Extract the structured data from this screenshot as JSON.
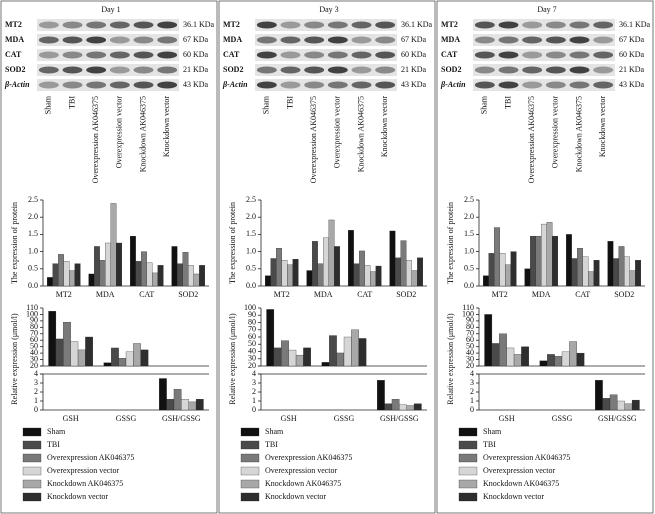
{
  "panels": [
    {
      "title": "Day 1"
    },
    {
      "title": "Day 3"
    },
    {
      "title": "Day 7"
    }
  ],
  "blot": {
    "rows": [
      "MT2",
      "MDA",
      "CAT",
      "SOD2",
      "β-Actin"
    ],
    "sizes": [
      "36.1 KDa",
      "67 KDa",
      "60 KDa",
      "21 KDa",
      "43 KDa"
    ],
    "lanes": [
      "Sham",
      "TBI",
      "Overexpression AK046375",
      "Overexpression vector",
      "Knockdown AK046375",
      "Knockdown vector"
    ]
  },
  "chart_data": [
    {
      "type": "bar",
      "y_label": "The expression of protein",
      "categories": [
        "MT2",
        "MDA",
        "CAT",
        "SOD2"
      ],
      "ylim": [
        0,
        2.5
      ],
      "yticks": [
        {
          "value": 0,
          "label": "0.0"
        },
        {
          "value": 0.5,
          "label": "0.5"
        },
        {
          "value": 1,
          "label": "1.0"
        },
        {
          "value": 1.5,
          "label": "1.5"
        },
        {
          "value": 2,
          "label": "2.0"
        },
        {
          "value": 2.5,
          "label": "2.5"
        }
      ],
      "series": [
        {
          "name": "Sham",
          "color": "#111111",
          "values": [
            0.25,
            0.35,
            1.45,
            1.15
          ]
        },
        {
          "name": "TBI",
          "color": "#4a4a4a",
          "values": [
            0.65,
            1.15,
            0.72,
            0.65
          ]
        },
        {
          "name": "Overexpression AK046375",
          "color": "#7a7a7a",
          "values": [
            0.92,
            0.75,
            1.0,
            0.98
          ]
        },
        {
          "name": "Overexpression vector",
          "color": "#d6d6d6",
          "values": [
            0.72,
            1.25,
            0.68,
            0.6
          ]
        },
        {
          "name": "Knockdown AK046375",
          "color": "#a8a8a8",
          "values": [
            0.45,
            2.4,
            0.38,
            0.35
          ]
        },
        {
          "name": "Knockdown vector",
          "color": "#2e2e2e",
          "values": [
            0.65,
            1.25,
            0.6,
            0.6
          ]
        }
      ]
    },
    {
      "type": "broken-bar",
      "y_label": "Relative expression (μmol/l)",
      "categories": [
        "GSH",
        "GSSG",
        "GSH/GSSG"
      ],
      "ylim": [
        20,
        110
      ],
      "yticks": [
        20,
        30,
        40,
        50,
        60,
        70,
        80,
        90,
        100,
        110
      ],
      "y2lim": [
        0,
        4
      ],
      "y2ticks": [
        0,
        1,
        2,
        3,
        4
      ],
      "series": [
        {
          "name": "Sham",
          "color": "#111111",
          "values": [
            105,
            25,
            3.5
          ]
        },
        {
          "name": "TBI",
          "color": "#4a4a4a",
          "values": [
            62,
            48,
            1.2
          ]
        },
        {
          "name": "Overexpression AK046375",
          "color": "#7a7a7a",
          "values": [
            88,
            32,
            2.3
          ]
        },
        {
          "name": "Overexpression vector",
          "color": "#d6d6d6",
          "values": [
            58,
            42,
            1.2
          ]
        },
        {
          "name": "Knockdown AK046375",
          "color": "#a8a8a8",
          "values": [
            45,
            55,
            0.9
          ]
        },
        {
          "name": "Knockdown vector",
          "color": "#2e2e2e",
          "values": [
            65,
            45,
            1.2
          ]
        }
      ]
    },
    {
      "type": "bar",
      "y_label": "The expression of protein",
      "categories": [
        "MT2",
        "MDA",
        "CAT",
        "SOD2"
      ],
      "ylim": [
        0,
        2.5
      ],
      "yticks": [
        {
          "value": 0,
          "label": "0.0"
        },
        {
          "value": 0.5,
          "label": "0.5"
        },
        {
          "value": 1,
          "label": "1.0"
        },
        {
          "value": 1.5,
          "label": "1.5"
        },
        {
          "value": 2,
          "label": "2.0"
        },
        {
          "value": 2.5,
          "label": "2.5"
        }
      ],
      "series": [
        {
          "name": "Sham",
          "color": "#111111",
          "values": [
            0.3,
            0.45,
            1.62,
            1.6
          ]
        },
        {
          "name": "TBI",
          "color": "#4a4a4a",
          "values": [
            0.8,
            1.3,
            0.65,
            0.82
          ]
        },
        {
          "name": "Overexpression AK046375",
          "color": "#7a7a7a",
          "values": [
            1.1,
            0.65,
            1.02,
            1.32
          ]
        },
        {
          "name": "Overexpression vector",
          "color": "#d6d6d6",
          "values": [
            0.75,
            1.4,
            0.6,
            0.75
          ]
        },
        {
          "name": "Knockdown AK046375",
          "color": "#a8a8a8",
          "values": [
            0.62,
            1.92,
            0.42,
            0.45
          ]
        },
        {
          "name": "Knockdown vector",
          "color": "#2e2e2e",
          "values": [
            0.78,
            1.15,
            0.58,
            0.82
          ]
        }
      ]
    },
    {
      "type": "broken-bar",
      "y_label": "Relative expression (μmol/l)",
      "categories": [
        "GSH",
        "GSSG",
        "GSH/GSSG"
      ],
      "ylim": [
        20,
        100
      ],
      "yticks": [
        20,
        30,
        40,
        50,
        60,
        70,
        80,
        90,
        100
      ],
      "y2lim": [
        0,
        4
      ],
      "y2ticks": [
        0,
        1,
        2,
        3,
        4
      ],
      "series": [
        {
          "name": "Sham",
          "color": "#111111",
          "values": [
            98,
            25,
            3.3
          ]
        },
        {
          "name": "TBI",
          "color": "#4a4a4a",
          "values": [
            45,
            62,
            0.7
          ]
        },
        {
          "name": "Overexpression AK046375",
          "color": "#7a7a7a",
          "values": [
            55,
            38,
            1.2
          ]
        },
        {
          "name": "Overexpression vector",
          "color": "#d6d6d6",
          "values": [
            42,
            60,
            0.6
          ]
        },
        {
          "name": "Knockdown AK046375",
          "color": "#a8a8a8",
          "values": [
            35,
            70,
            0.5
          ]
        },
        {
          "name": "Knockdown vector",
          "color": "#2e2e2e",
          "values": [
            45,
            58,
            0.7
          ]
        }
      ]
    },
    {
      "type": "bar",
      "y_label": "The expression of protein",
      "categories": [
        "MT2",
        "MDA",
        "CAT",
        "SOD2"
      ],
      "ylim": [
        0,
        2.5
      ],
      "yticks": [
        {
          "value": 0,
          "label": "0.0"
        },
        {
          "value": 0.5,
          "label": "0.5"
        },
        {
          "value": 1,
          "label": "1.0"
        },
        {
          "value": 1.5,
          "label": "1.5"
        },
        {
          "value": 2,
          "label": "2.0"
        },
        {
          "value": 2.5,
          "label": "2.5"
        }
      ],
      "series": [
        {
          "name": "Sham",
          "color": "#111111",
          "values": [
            0.3,
            0.5,
            1.5,
            1.3
          ]
        },
        {
          "name": "TBI",
          "color": "#4a4a4a",
          "values": [
            0.95,
            1.45,
            0.8,
            0.8
          ]
        },
        {
          "name": "Overexpression AK046375",
          "color": "#7a7a7a",
          "values": [
            1.7,
            1.45,
            1.1,
            1.15
          ]
        },
        {
          "name": "Overexpression vector",
          "color": "#d6d6d6",
          "values": [
            0.95,
            1.8,
            0.85,
            0.85
          ]
        },
        {
          "name": "Knockdown AK046375",
          "color": "#a8a8a8",
          "values": [
            0.62,
            1.85,
            0.42,
            0.45
          ]
        },
        {
          "name": "Knockdown vector",
          "color": "#2e2e2e",
          "values": [
            1.0,
            1.45,
            0.75,
            0.75
          ]
        }
      ]
    },
    {
      "type": "broken-bar",
      "y_label": "Relative expression (μmol/l)",
      "categories": [
        "GSH",
        "GSSG",
        "GSH/GSSG"
      ],
      "ylim": [
        20,
        110
      ],
      "yticks": [
        20,
        30,
        40,
        50,
        60,
        70,
        80,
        90,
        100,
        110
      ],
      "y2lim": [
        0,
        4
      ],
      "y2ticks": [
        0,
        1,
        2,
        3,
        4
      ],
      "series": [
        {
          "name": "Sham",
          "color": "#111111",
          "values": [
            100,
            28,
            3.3
          ]
        },
        {
          "name": "TBI",
          "color": "#4a4a4a",
          "values": [
            55,
            38,
            1.3
          ]
        },
        {
          "name": "Overexpression AK046375",
          "color": "#7a7a7a",
          "values": [
            70,
            35,
            1.7
          ]
        },
        {
          "name": "Overexpression vector",
          "color": "#d6d6d6",
          "values": [
            48,
            42,
            1.0
          ]
        },
        {
          "name": "Knockdown AK046375",
          "color": "#a8a8a8",
          "values": [
            38,
            58,
            0.7
          ]
        },
        {
          "name": "Knockdown vector",
          "color": "#2e2e2e",
          "values": [
            50,
            40,
            1.1
          ]
        }
      ]
    }
  ]
}
